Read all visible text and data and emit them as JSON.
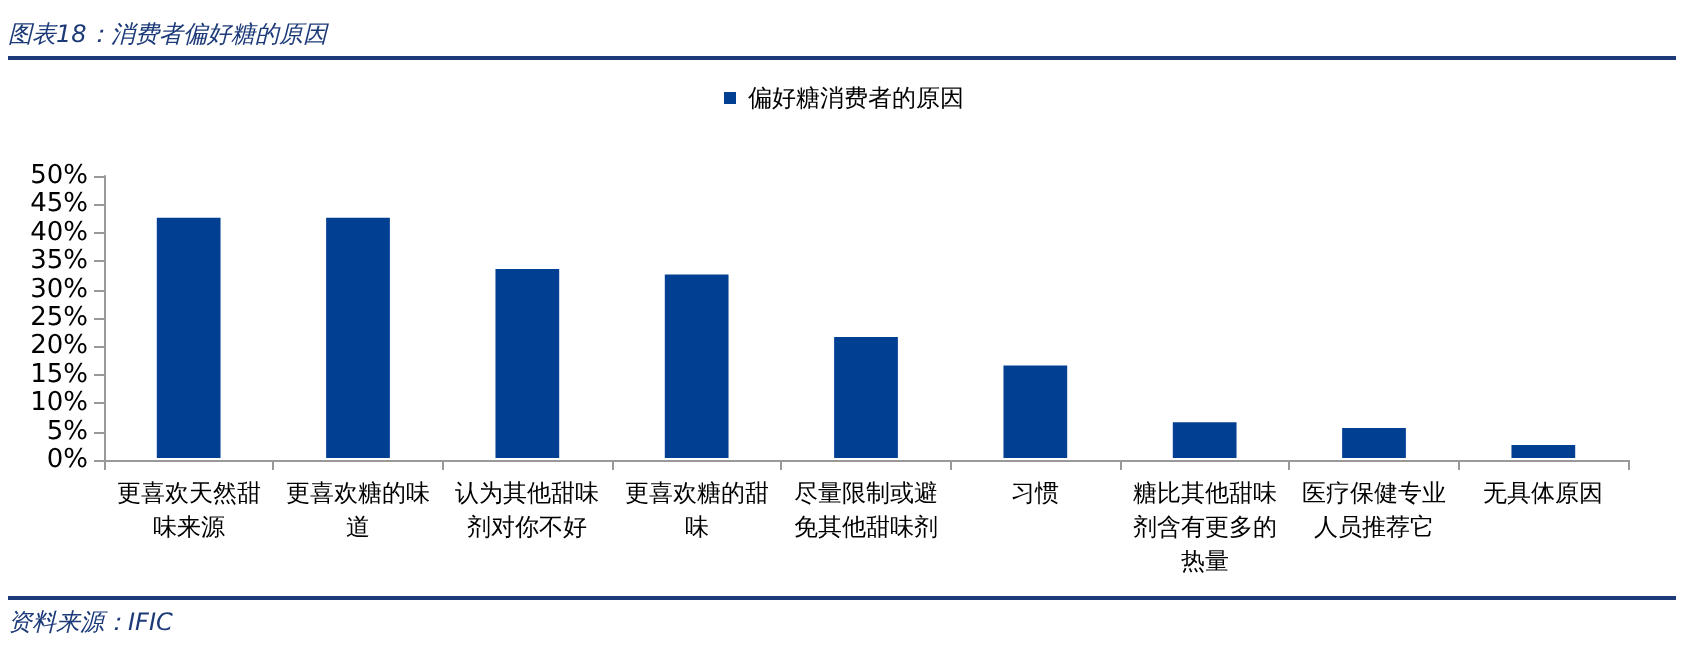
{
  "chart_data": {
    "type": "bar",
    "title": "图表18：消费者偏好糖的原因",
    "categories": [
      "更喜欢天然甜味来源",
      "更喜欢糖的味道",
      "认为其他甜味剂对你不好",
      "更喜欢糖的甜味",
      "尽量限制或避免其他甜味剂",
      "习惯",
      "糖比其他甜味剂含有更多的热量",
      "医疗保健专业人员推荐它",
      "无具体原因"
    ],
    "series": [
      {
        "name": "偏好糖消费者的原因",
        "color": "#003f91",
        "values": [
          43,
          43,
          34,
          33,
          22,
          17,
          7,
          6,
          3
        ]
      }
    ],
    "ylim": [
      0,
      50
    ],
    "yticks": [
      {
        "value": 0,
        "label": "0%"
      },
      {
        "value": 5,
        "label": "5%"
      },
      {
        "value": 10,
        "label": "10%"
      },
      {
        "value": 15,
        "label": "15%"
      },
      {
        "value": 20,
        "label": "20%"
      },
      {
        "value": 25,
        "label": "25%"
      },
      {
        "value": 30,
        "label": "30%"
      },
      {
        "value": 35,
        "label": "35%"
      },
      {
        "value": 40,
        "label": "40%"
      },
      {
        "value": 45,
        "label": "45%"
      },
      {
        "value": 50,
        "label": "50%"
      }
    ],
    "grid": false,
    "legend": "top",
    "annotations": [
      "资料来源：IFIC"
    ]
  }
}
